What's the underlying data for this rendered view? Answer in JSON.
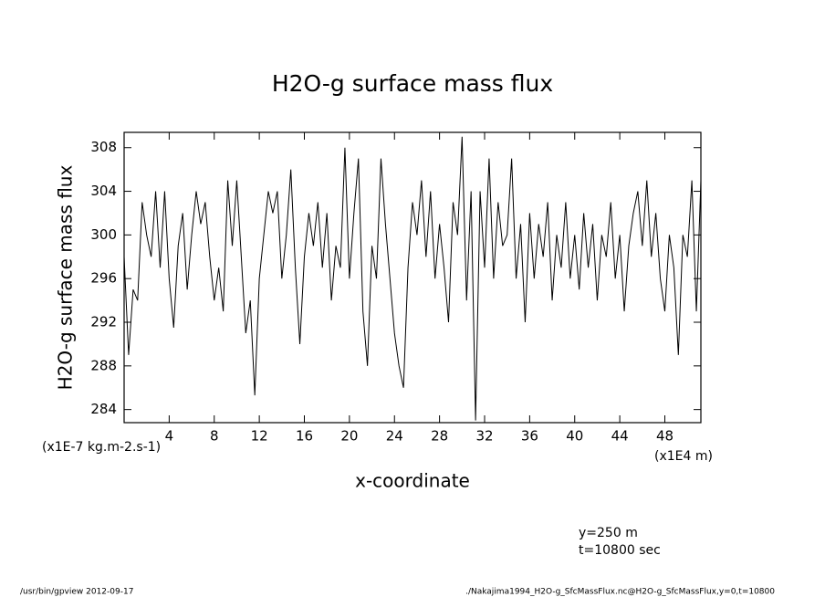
{
  "chart_data": {
    "type": "line",
    "title": "H2O-g surface mass flux",
    "y_label": "H2O-g surface mass flux",
    "x_label": "x-coordinate",
    "y_units": "(x1E-7 kg.m-2.s-1)",
    "x_units": "(x1E4 m)",
    "annotations": [
      "y=250 m",
      "t=10800 sec"
    ],
    "footer_left": "/usr/bin/gpview  2012-09-17",
    "footer_right": "./Nakajima1994_H2O-g_SfcMassFlux.nc@H2O-g_SfcMassFlux,y=0,t=10800",
    "color": "#000000",
    "xlim": [
      0,
      51.2
    ],
    "ylim": [
      282.8,
      309.4
    ],
    "xticks": [
      4,
      8,
      12,
      16,
      20,
      24,
      28,
      32,
      36,
      40,
      44,
      48
    ],
    "yticks": [
      284,
      288,
      292,
      296,
      300,
      304,
      308
    ],
    "x": [
      0,
      0.4,
      0.8,
      1.2,
      1.6,
      2.0,
      2.4,
      2.8,
      3.2,
      3.6,
      4.0,
      4.4,
      4.8,
      5.2,
      5.6,
      6.0,
      6.4,
      6.8,
      7.2,
      7.6,
      8.0,
      8.4,
      8.8,
      9.2,
      9.6,
      10.0,
      10.4,
      10.8,
      11.2,
      11.6,
      12.0,
      12.4,
      12.8,
      13.2,
      13.6,
      14.0,
      14.4,
      14.8,
      15.2,
      15.6,
      16.0,
      16.4,
      16.8,
      17.2,
      17.6,
      18.0,
      18.4,
      18.8,
      19.2,
      19.6,
      20.0,
      20.4,
      20.8,
      21.2,
      21.6,
      22.0,
      22.4,
      22.8,
      23.2,
      23.6,
      24.0,
      24.4,
      24.8,
      25.2,
      25.6,
      26.0,
      26.4,
      26.8,
      27.2,
      27.6,
      28.0,
      28.4,
      28.8,
      29.2,
      29.6,
      30.0,
      30.4,
      30.8,
      31.2,
      31.6,
      32.0,
      32.4,
      32.8,
      33.2,
      33.6,
      34.0,
      34.4,
      34.8,
      35.2,
      35.6,
      36.0,
      36.4,
      36.8,
      37.2,
      37.6,
      38.0,
      38.4,
      38.8,
      39.2,
      39.6,
      40.0,
      40.4,
      40.8,
      41.2,
      41.6,
      42.0,
      42.4,
      42.8,
      43.2,
      43.6,
      44.0,
      44.4,
      44.8,
      45.2,
      45.6,
      46.0,
      46.4,
      46.8,
      47.2,
      47.6,
      48.0,
      48.4,
      48.8,
      49.2,
      49.6,
      50.0,
      50.4,
      50.8,
      51.2
    ],
    "values": [
      298,
      289,
      295,
      294,
      303,
      300,
      298,
      304,
      297,
      304,
      296,
      291.5,
      299,
      302,
      295,
      300,
      304,
      301,
      303,
      298,
      294,
      297,
      293,
      305,
      299,
      305,
      298,
      291,
      294,
      285.3,
      296,
      300,
      304,
      302,
      304,
      296,
      300,
      306,
      297,
      290,
      298,
      302,
      299,
      303,
      297,
      302,
      294,
      299,
      297,
      308,
      296,
      302,
      307,
      293,
      288,
      299,
      296,
      307,
      301,
      296,
      291,
      288,
      286,
      297,
      303,
      300,
      305,
      298,
      304,
      296,
      301,
      297,
      292,
      303,
      300,
      309,
      294,
      304,
      283,
      304,
      297,
      307,
      296,
      303,
      299,
      300,
      307,
      296,
      301,
      292,
      302,
      296,
      301,
      298,
      303,
      294,
      300,
      297,
      303,
      296,
      300,
      295,
      302,
      297,
      301,
      294,
      300,
      298,
      303,
      296,
      300,
      293,
      299,
      302,
      304,
      299,
      305,
      298,
      302,
      296,
      293,
      300,
      297,
      289,
      300,
      298,
      305,
      293,
      305
    ]
  }
}
